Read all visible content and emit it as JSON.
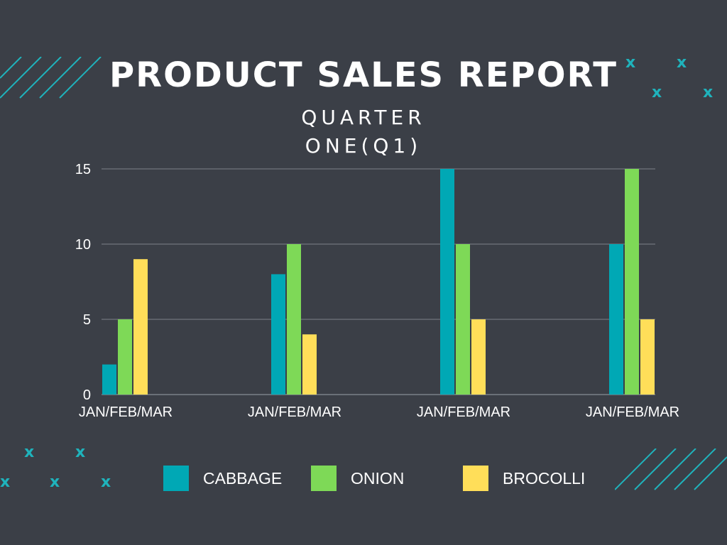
{
  "title": "PRODUCT SALES REPORT",
  "subtitle_lines": [
    "QUARTER",
    "ONE(Q1)"
  ],
  "decorations": {
    "x_glyph": "x",
    "color": "#1fb3bc"
  },
  "chart_data": {
    "type": "bar",
    "title": "",
    "xlabel": "",
    "ylabel": "",
    "ylim": [
      0,
      15
    ],
    "yticks": [
      0,
      5,
      10,
      15
    ],
    "grid": true,
    "legend_position": "bottom",
    "categories": [
      "JAN/FEB/MAR",
      "JAN/FEB/MAR",
      "JAN/FEB/MAR",
      "JAN/FEB/MAR"
    ],
    "series": [
      {
        "name": "CABBAGE",
        "color": "#00a8b5",
        "values": [
          2,
          8,
          15,
          10
        ]
      },
      {
        "name": "ONION",
        "color": "#7ed957",
        "values": [
          5,
          10,
          10,
          15
        ]
      },
      {
        "name": "BROCOLLI",
        "color": "#ffde59",
        "values": [
          9,
          4,
          5,
          5
        ]
      }
    ]
  }
}
